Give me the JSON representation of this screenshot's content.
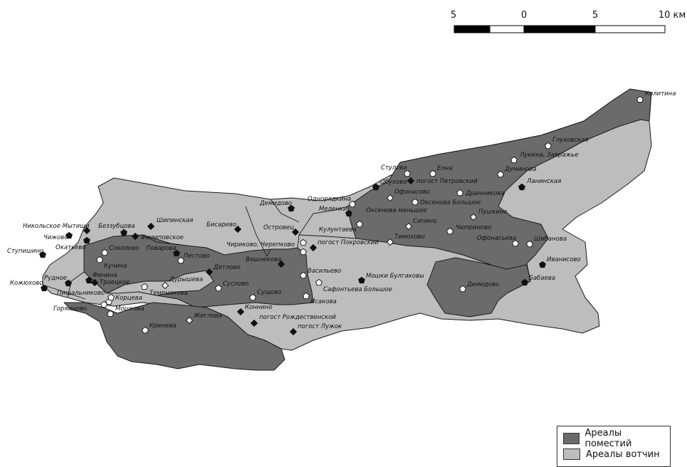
{
  "colors": {
    "pomestya_area": "#6b6b6b",
    "votchina_area": "#bdbdbd",
    "border": "#1a1a1a",
    "pomestya_marker": "#111111",
    "votchina_marker": "#ffffff"
  },
  "scale_bar": {
    "labels": [
      "5",
      "0",
      "5",
      "10 км"
    ]
  },
  "legend": {
    "items": [
      {
        "key": "pomestya",
        "label": "Ареалы поместий"
      },
      {
        "key": "votchina",
        "label": "Ареалы вотчин"
      }
    ]
  },
  "settlements": [
    {
      "name": "Колитина",
      "type": "votchina",
      "marker": "pentagon"
    },
    {
      "name": "Глуховская",
      "type": "votchina",
      "marker": "pentagon"
    },
    {
      "name": "Лукина, Завражье",
      "type": "votchina",
      "marker": "pentagon"
    },
    {
      "name": "Думинова",
      "type": "votchina",
      "marker": "pentagon"
    },
    {
      "name": "Ланинская",
      "type": "pomestya",
      "marker": "pentagon"
    },
    {
      "name": "Стулова",
      "type": "votchina",
      "marker": "pentagon"
    },
    {
      "name": "Елна",
      "type": "votchina",
      "marker": "pentagon"
    },
    {
      "name": "Обухово",
      "type": "pomestya",
      "marker": "pentagon"
    },
    {
      "name": "погост Петровский",
      "type": "pomestya",
      "marker": "diamond"
    },
    {
      "name": "Дранникова",
      "type": "votchina",
      "marker": "pentagon"
    },
    {
      "name": "Однорядкина",
      "type": "votchina",
      "marker": "pentagon"
    },
    {
      "name": "Офонасово",
      "type": "votchina",
      "marker": "diamond"
    },
    {
      "name": "Оксенова Большое",
      "type": "votchina",
      "marker": "pentagon"
    },
    {
      "name": "Меленки",
      "type": "pomestya",
      "marker": "pentagon"
    },
    {
      "name": "Оксенова меньшое",
      "type": "votchina",
      "marker": "pentagon"
    },
    {
      "name": "Пушкино",
      "type": "votchina",
      "marker": "diamond"
    },
    {
      "name": "Сипино",
      "type": "votchina",
      "marker": "diamond"
    },
    {
      "name": "Чюприново",
      "type": "votchina",
      "marker": "pentagon"
    },
    {
      "name": "Тимохово",
      "type": "votchina",
      "marker": "diamond"
    },
    {
      "name": "Офонасьева",
      "type": "votchina",
      "marker": "pentagon"
    },
    {
      "name": "Шибанова",
      "type": "votchina",
      "marker": "pentagon"
    },
    {
      "name": "Иванисово",
      "type": "pomestya",
      "marker": "pentagon"
    },
    {
      "name": "Бабаева",
      "type": "pomestya",
      "marker": "pentagon"
    },
    {
      "name": "Демидово",
      "type": "votchina",
      "marker": "pentagon"
    },
    {
      "name": "Мошки Булгаковы",
      "type": "pomestya",
      "marker": "pentagon"
    },
    {
      "name": "Демидово",
      "type": "pomestya",
      "marker": "pentagon"
    },
    {
      "name": "Кулунтаева",
      "type": "votchina",
      "marker": "pentagon"
    },
    {
      "name": "погост Покровский",
      "type": "pomestya",
      "marker": "diamond"
    },
    {
      "name": "Островец",
      "type": "pomestya",
      "marker": "diamond"
    },
    {
      "name": "Бисарево",
      "type": "pomestya",
      "marker": "diamond"
    },
    {
      "name": "Шипинская",
      "type": "pomestya",
      "marker": "diamond"
    },
    {
      "name": "Чириково, Черепково",
      "type": "votchina",
      "marker": "pentagon"
    },
    {
      "name": "Вешнекова",
      "type": "pomestya",
      "marker": "diamond"
    },
    {
      "name": "Васильево",
      "type": "votchina",
      "marker": "pentagon"
    },
    {
      "name": "Сафонтьева Большое",
      "type": "votchina",
      "marker": "pentagon"
    },
    {
      "name": "Сущово",
      "type": "votchina",
      "marker": "pentagon"
    },
    {
      "name": "Исакова",
      "type": "votchina",
      "marker": "pentagon"
    },
    {
      "name": "Коннино",
      "type": "pomestya",
      "marker": "diamond"
    },
    {
      "name": "погост Рождественской",
      "type": "pomestya",
      "marker": "diamond"
    },
    {
      "name": "погост Лужок",
      "type": "pomestya",
      "marker": "diamond"
    },
    {
      "name": "Суслово",
      "type": "votchina",
      "marker": "pentagon"
    },
    {
      "name": "Дятлово",
      "type": "pomestya",
      "marker": "diamond"
    },
    {
      "name": "Пестово",
      "type": "pomestya",
      "marker": "pentagon"
    },
    {
      "name": "Поварова",
      "type": "votchina",
      "marker": "pentagon"
    },
    {
      "name": "Филиповское",
      "type": "pomestya",
      "marker": "diamond"
    },
    {
      "name": "Беззубцова",
      "type": "pomestya",
      "marker": "pentagon"
    },
    {
      "name": "Никольское Мытищи",
      "type": "pomestya",
      "marker": "diamond"
    },
    {
      "name": "Чижово",
      "type": "pomestya",
      "marker": "pentagon"
    },
    {
      "name": "Окатьево",
      "type": "pomestya",
      "marker": "pentagon"
    },
    {
      "name": "Соколово",
      "type": "votchina",
      "marker": "pentagon"
    },
    {
      "name": "Ступишино",
      "type": "pomestya",
      "marker": "pentagon"
    },
    {
      "name": "Кучина",
      "type": "votchina",
      "marker": "pentagon"
    },
    {
      "name": "Фенина",
      "type": "pomestya",
      "marker": "pentagon"
    },
    {
      "name": "Троецкое",
      "type": "pomestya",
      "marker": "diamond"
    },
    {
      "name": "Рудное",
      "type": "pomestya",
      "marker": "pentagon"
    },
    {
      "name": "Кожюхово",
      "type": "pomestya",
      "marker": "pentagon"
    },
    {
      "name": "Пищальниково",
      "type": "votchina",
      "marker": "pentagon"
    },
    {
      "name": "Корцева",
      "type": "votchina",
      "marker": "pentagon"
    },
    {
      "name": "Горяиново",
      "type": "votchina",
      "marker": "pentagon"
    },
    {
      "name": "Мошкова",
      "type": "votchina",
      "marker": "pentagon"
    },
    {
      "name": "Дурышева",
      "type": "votchina",
      "marker": "diamond"
    },
    {
      "name": "Теменикова",
      "type": "votchina",
      "marker": "pentagon"
    },
    {
      "name": "Жеглова",
      "type": "votchina",
      "marker": "diamond"
    },
    {
      "name": "Кренева",
      "type": "votchina",
      "marker": "pentagon"
    }
  ]
}
